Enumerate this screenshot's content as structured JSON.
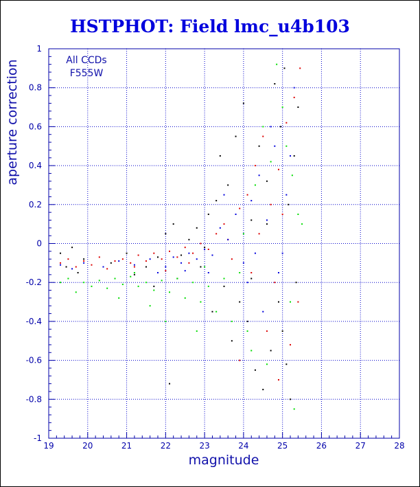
{
  "chart_data": {
    "type": "scatter",
    "title": "HSTPHOT: Field lmc_u4b103",
    "xlabel": "magnitude",
    "ylabel": "aperture correction",
    "xlim": [
      19,
      28
    ],
    "ylim": [
      -1,
      1
    ],
    "x_ticks": [
      19,
      20,
      21,
      22,
      23,
      24,
      25,
      26,
      27,
      28
    ],
    "y_ticks": [
      -1,
      -0.8,
      -0.6,
      -0.4,
      -0.2,
      0,
      0.2,
      0.4,
      0.6,
      0.8,
      1
    ],
    "grid": true,
    "annotations": [
      "All CCDs",
      "F555W"
    ],
    "colors": {
      "frame": "#0000aa",
      "grid": "#0000cc",
      "title": "#0000dd",
      "text": "#1010aa",
      "series": [
        "#000000",
        "#dd0000",
        "#00dd00",
        "#0000dd"
      ]
    },
    "series": [
      {
        "color": "#000000",
        "points": [
          [
            19.3,
            -0.05
          ],
          [
            19.45,
            -0.12
          ],
          [
            19.6,
            -0.02
          ],
          [
            19.75,
            -0.15
          ],
          [
            19.9,
            -0.08
          ],
          [
            20.6,
            -0.1
          ],
          [
            21.0,
            -0.05
          ],
          [
            21.2,
            -0.16
          ],
          [
            21.5,
            -0.12
          ],
          [
            21.8,
            -0.07
          ],
          [
            22.0,
            0.05
          ],
          [
            22.2,
            0.1
          ],
          [
            22.4,
            -0.06
          ],
          [
            22.6,
            0.02
          ],
          [
            22.8,
            0.08
          ],
          [
            22.9,
            -0.12
          ],
          [
            23.1,
            0.15
          ],
          [
            23.2,
            -0.35
          ],
          [
            23.4,
            0.45
          ],
          [
            23.5,
            -0.22
          ],
          [
            23.6,
            0.3
          ],
          [
            23.7,
            -0.5
          ],
          [
            23.8,
            0.55
          ],
          [
            23.9,
            -0.3
          ],
          [
            24.0,
            0.72
          ],
          [
            24.1,
            -0.4
          ],
          [
            24.2,
            0.12
          ],
          [
            24.3,
            -0.65
          ],
          [
            24.4,
            0.5
          ],
          [
            24.5,
            -0.75
          ],
          [
            24.6,
            0.32
          ],
          [
            24.7,
            -0.55
          ],
          [
            24.8,
            0.82
          ],
          [
            24.9,
            -0.3
          ],
          [
            24.95,
            0.6
          ],
          [
            25.0,
            -0.45
          ],
          [
            25.05,
            0.9
          ],
          [
            25.1,
            -0.62
          ],
          [
            25.15,
            0.2
          ],
          [
            25.2,
            -0.8
          ],
          [
            25.3,
            0.45
          ],
          [
            25.35,
            -0.2
          ],
          [
            25.4,
            0.7
          ],
          [
            23.0,
            -0.02
          ],
          [
            22.3,
            -0.18
          ],
          [
            21.7,
            -0.22
          ],
          [
            22.1,
            -0.72
          ],
          [
            24.2,
            -0.18
          ],
          [
            23.3,
            0.22
          ],
          [
            24.6,
            0.1
          ]
        ]
      },
      {
        "color": "#dd0000",
        "points": [
          [
            19.3,
            -0.1
          ],
          [
            19.5,
            -0.08
          ],
          [
            19.7,
            -0.12
          ],
          [
            19.9,
            -0.09
          ],
          [
            20.1,
            -0.11
          ],
          [
            20.3,
            -0.07
          ],
          [
            20.5,
            -0.13
          ],
          [
            20.7,
            -0.09
          ],
          [
            20.9,
            -0.08
          ],
          [
            21.1,
            -0.1
          ],
          [
            21.3,
            -0.06
          ],
          [
            21.5,
            -0.09
          ],
          [
            21.7,
            -0.05
          ],
          [
            21.9,
            -0.08
          ],
          [
            22.1,
            -0.04
          ],
          [
            22.3,
            -0.07
          ],
          [
            22.5,
            -0.02
          ],
          [
            22.7,
            -0.05
          ],
          [
            22.9,
            0.0
          ],
          [
            23.1,
            -0.03
          ],
          [
            23.3,
            0.05
          ],
          [
            23.5,
            0.1
          ],
          [
            23.7,
            -0.08
          ],
          [
            23.9,
            0.18
          ],
          [
            24.1,
            0.25
          ],
          [
            24.3,
            0.4
          ],
          [
            24.5,
            0.55
          ],
          [
            24.7,
            0.2
          ],
          [
            24.9,
            0.38
          ],
          [
            25.1,
            0.62
          ],
          [
            25.3,
            0.75
          ],
          [
            25.45,
            0.9
          ],
          [
            24.2,
            -0.15
          ],
          [
            24.6,
            -0.45
          ],
          [
            24.9,
            -0.7
          ],
          [
            25.2,
            -0.52
          ],
          [
            25.4,
            -0.3
          ],
          [
            23.6,
            0.02
          ],
          [
            22.6,
            -0.1
          ],
          [
            21.2,
            -0.12
          ],
          [
            23.9,
            -0.6
          ],
          [
            24.4,
            0.05
          ],
          [
            25.0,
            0.15
          ],
          [
            22.0,
            -0.14
          ],
          [
            24.8,
            -0.2
          ]
        ]
      },
      {
        "color": "#00dd00",
        "points": [
          [
            19.3,
            -0.2
          ],
          [
            19.5,
            -0.18
          ],
          [
            19.7,
            -0.25
          ],
          [
            19.9,
            -0.2
          ],
          [
            20.1,
            -0.22
          ],
          [
            20.3,
            -0.19
          ],
          [
            20.5,
            -0.23
          ],
          [
            20.7,
            -0.18
          ],
          [
            20.9,
            -0.21
          ],
          [
            21.1,
            -0.17
          ],
          [
            21.3,
            -0.22
          ],
          [
            21.5,
            -0.2
          ],
          [
            21.7,
            -0.24
          ],
          [
            21.9,
            -0.19
          ],
          [
            22.1,
            -0.25
          ],
          [
            22.3,
            -0.18
          ],
          [
            22.5,
            -0.28
          ],
          [
            22.7,
            -0.2
          ],
          [
            22.9,
            -0.3
          ],
          [
            23.1,
            -0.22
          ],
          [
            23.3,
            -0.35
          ],
          [
            23.5,
            -0.18
          ],
          [
            23.7,
            -0.4
          ],
          [
            23.9,
            -0.15
          ],
          [
            24.1,
            -0.45
          ],
          [
            24.3,
            0.3
          ],
          [
            24.5,
            0.6
          ],
          [
            24.7,
            0.42
          ],
          [
            24.85,
            0.92
          ],
          [
            25.0,
            0.7
          ],
          [
            25.1,
            0.5
          ],
          [
            25.25,
            0.35
          ],
          [
            25.4,
            0.15
          ],
          [
            25.5,
            0.1
          ],
          [
            24.2,
            -0.55
          ],
          [
            24.6,
            -0.62
          ],
          [
            25.3,
            -0.85
          ],
          [
            22.0,
            -0.4
          ],
          [
            21.2,
            -0.15
          ],
          [
            23.0,
            -0.12
          ],
          [
            24.0,
            0.05
          ],
          [
            22.8,
            -0.45
          ],
          [
            21.6,
            -0.32
          ],
          [
            20.8,
            -0.28
          ],
          [
            25.2,
            -0.3
          ]
        ]
      },
      {
        "color": "#0000dd",
        "points": [
          [
            19.3,
            -0.11
          ],
          [
            19.6,
            -0.13
          ],
          [
            19.9,
            -0.1
          ],
          [
            20.4,
            -0.12
          ],
          [
            20.8,
            -0.09
          ],
          [
            21.2,
            -0.11
          ],
          [
            21.6,
            -0.08
          ],
          [
            22.0,
            -0.12
          ],
          [
            22.2,
            -0.07
          ],
          [
            22.4,
            -0.1
          ],
          [
            22.6,
            -0.05
          ],
          [
            22.8,
            -0.08
          ],
          [
            23.0,
            -0.03
          ],
          [
            23.2,
            -0.06
          ],
          [
            23.4,
            0.08
          ],
          [
            23.6,
            0.02
          ],
          [
            23.8,
            0.15
          ],
          [
            24.0,
            -0.1
          ],
          [
            24.2,
            0.22
          ],
          [
            24.4,
            0.35
          ],
          [
            24.6,
            0.12
          ],
          [
            24.8,
            0.5
          ],
          [
            25.0,
            -0.05
          ],
          [
            25.2,
            0.45
          ],
          [
            25.3,
            0.8
          ],
          [
            24.1,
            -0.2
          ],
          [
            24.5,
            -0.35
          ],
          [
            24.9,
            -0.15
          ],
          [
            23.1,
            -0.15
          ],
          [
            23.5,
            0.25
          ],
          [
            22.5,
            -0.14
          ],
          [
            21.8,
            -0.15
          ],
          [
            24.3,
            -0.05
          ],
          [
            24.7,
            0.6
          ],
          [
            25.1,
            0.25
          ]
        ]
      }
    ]
  }
}
